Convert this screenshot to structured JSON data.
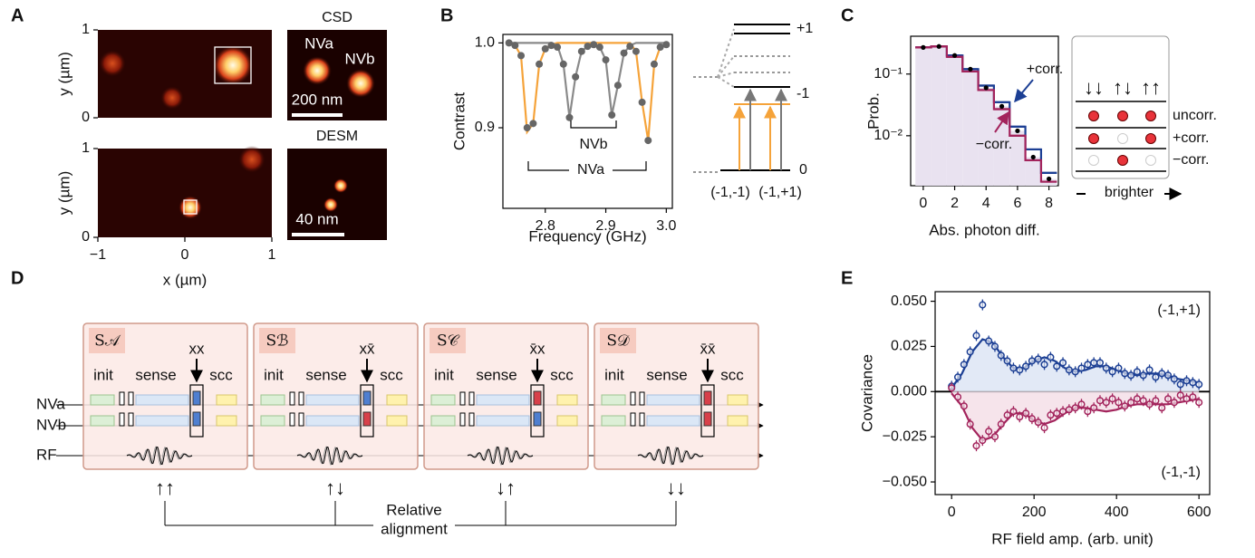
{
  "panel_labels": [
    "A",
    "B",
    "C",
    "D",
    "E"
  ],
  "chart_data": [
    {
      "type": "image",
      "ylabel": "y (µm)",
      "xlim": [
        -1,
        1
      ],
      "ylim": [
        0,
        1
      ],
      "yticks": [
        0,
        1
      ]
    },
    {
      "type": "image",
      "ylabel": "y (µm)",
      "xlabel": "x (µm)",
      "xlim": [
        -1,
        1
      ],
      "ylim": [
        0,
        1
      ],
      "xticks": [
        {
          "value": -1,
          "label": "−1"
        },
        0,
        1
      ],
      "yticks": [
        0,
        1
      ]
    },
    {
      "type": "image",
      "title": "CSD",
      "annotations": [
        "NVa",
        "NVb"
      ],
      "scale_bar": "200 nm"
    },
    {
      "type": "image",
      "title": "DESM",
      "scale_bar": "40 nm"
    },
    {
      "type": "scatter",
      "ylabel": "Contrast",
      "xlabel": "Frequency (GHz)",
      "xlim": [
        2.73,
        3.01
      ],
      "ylim": [
        0.805,
        1.01
      ],
      "xticks": [
        2.8,
        2.9,
        {
          "value": 3.0,
          "label": "3.0"
        }
      ],
      "yticks": [
        0.9,
        {
          "value": 1.0,
          "label": "1.0"
        }
      ],
      "x": [
        2.74,
        2.75,
        2.76,
        2.77,
        2.78,
        2.79,
        2.8,
        2.81,
        2.82,
        2.83,
        2.84,
        2.85,
        2.86,
        2.87,
        2.88,
        2.89,
        2.9,
        2.91,
        2.92,
        2.93,
        2.94,
        2.95,
        2.96,
        2.97,
        2.98,
        2.99,
        3.0
      ],
      "series": [
        {
          "mode": "line",
          "color": "#f5a33a",
          "values": [
            1.0,
            0.997,
            0.985,
            0.895,
            0.905,
            0.975,
            0.993,
            0.998,
            1.0,
            1.0,
            1.0,
            1.0,
            1.0,
            1.0,
            1.0,
            1.0,
            1.0,
            1.0,
            1.0,
            1.0,
            1.0,
            0.99,
            0.93,
            0.885,
            0.975,
            0.995,
            0.998
          ]
        },
        {
          "mode": "line",
          "color": "#8a8a8a",
          "values": [
            1.0,
            1.0,
            1.0,
            1.0,
            1.0,
            1.0,
            1.0,
            1.0,
            0.997,
            0.975,
            0.912,
            0.96,
            0.99,
            0.996,
            0.998,
            0.995,
            0.98,
            0.915,
            0.95,
            0.988,
            0.997,
            1.0,
            1.0,
            1.0,
            1.0,
            1.0,
            1.0
          ]
        },
        {
          "mode": "markers",
          "color": "#666666",
          "values": [
            1.0,
            0.997,
            0.985,
            0.9,
            0.905,
            0.975,
            0.993,
            0.997,
            0.995,
            0.975,
            0.912,
            0.96,
            0.99,
            0.996,
            0.998,
            0.995,
            0.98,
            0.915,
            0.95,
            0.988,
            0.996,
            0.99,
            0.93,
            0.885,
            0.975,
            0.995,
            0.998
          ]
        }
      ],
      "annotations": [
        "NVb",
        "NVa"
      ]
    },
    {
      "type": "step",
      "ylabel": "Prob.",
      "xlabel": "Abs. photon diff.",
      "log_y": true,
      "xlim": [
        -0.8,
        8.6
      ],
      "ylim": [
        0.00155,
        0.41
      ],
      "xticks": [
        0,
        2,
        4,
        6,
        8
      ],
      "yticks": [
        {
          "value": 0.1,
          "label": "10⁻¹"
        },
        {
          "value": 0.01,
          "label": "10⁻²"
        }
      ],
      "x": [
        0,
        1,
        2,
        3,
        4,
        5,
        6,
        7,
        8
      ],
      "series": [
        {
          "name": "uncorr.",
          "mode": "bars-dots",
          "color": "#000000",
          "fill": "#e9e2f0",
          "values": [
            0.27,
            0.28,
            0.2,
            0.12,
            0.06,
            0.03,
            0.012,
            0.0045,
            0.002
          ]
        },
        {
          "name": "+corr.",
          "mode": "step",
          "color": "#1c3f94",
          "values": [
            0.27,
            0.28,
            0.2,
            0.12,
            0.065,
            0.035,
            0.014,
            0.006,
            0.0025
          ]
        },
        {
          "name": "−corr.",
          "mode": "step",
          "color": "#a3245c",
          "values": [
            0.27,
            0.28,
            0.19,
            0.11,
            0.055,
            0.027,
            0.01,
            0.004,
            0.0018
          ]
        }
      ]
    },
    {
      "type": "scatter",
      "ylabel": "Covariance",
      "xlabel": "RF field amp. (arb. unit)",
      "xlim": [
        -40,
        626
      ],
      "ylim": [
        -0.057,
        0.0553
      ],
      "xticks": [
        0,
        200,
        400,
        600
      ],
      "yticks": [
        {
          "value": -0.05,
          "label": "−0.050"
        },
        {
          "value": -0.025,
          "label": "−0.025"
        },
        {
          "value": 0,
          "label": "0.000"
        },
        {
          "value": 0.025,
          "label": "0.025"
        },
        {
          "value": 0.05,
          "label": "0.050"
        }
      ],
      "zero_line": true,
      "series": [
        {
          "mode": "line",
          "color": "#1c3f94",
          "fill": "#dde5f5",
          "x": [
            0,
            25,
            50,
            75,
            100,
            125,
            150,
            175,
            200,
            225,
            250,
            275,
            300,
            325,
            350,
            375,
            400,
            425,
            450,
            475,
            500,
            525,
            550,
            575,
            600
          ],
          "values": [
            0.002,
            0.01,
            0.022,
            0.029,
            0.027,
            0.019,
            0.013,
            0.013,
            0.017,
            0.019,
            0.017,
            0.013,
            0.011,
            0.012,
            0.014,
            0.014,
            0.012,
            0.01,
            0.009,
            0.01,
            0.01,
            0.009,
            0.007,
            0.006,
            0.005
          ]
        },
        {
          "mode": "line",
          "color": "#a3245c",
          "fill": "#f4dfe8",
          "x": [
            0,
            25,
            50,
            75,
            100,
            125,
            150,
            175,
            200,
            225,
            250,
            275,
            300,
            325,
            350,
            375,
            400,
            425,
            450,
            475,
            500,
            525,
            550,
            575,
            600
          ],
          "values": [
            -0.001,
            -0.008,
            -0.02,
            -0.027,
            -0.025,
            -0.018,
            -0.012,
            -0.012,
            -0.016,
            -0.018,
            -0.016,
            -0.012,
            -0.009,
            -0.009,
            -0.01,
            -0.011,
            -0.01,
            -0.008,
            -0.007,
            -0.007,
            -0.007,
            -0.007,
            -0.006,
            -0.005,
            -0.004
          ]
        },
        {
          "mode": "errorbar",
          "color": "#1c3f94",
          "error": 0.003,
          "x": [
            0,
            15,
            30,
            45,
            60,
            75,
            90,
            105,
            120,
            135,
            150,
            165,
            180,
            195,
            210,
            225,
            240,
            255,
            270,
            285,
            300,
            315,
            330,
            345,
            360,
            375,
            390,
            405,
            420,
            435,
            450,
            465,
            480,
            495,
            510,
            525,
            540,
            555,
            570,
            585,
            600
          ],
          "values": [
            0.003,
            0.008,
            0.015,
            0.022,
            0.031,
            0.048,
            0.028,
            0.025,
            0.02,
            0.017,
            0.013,
            0.012,
            0.014,
            0.017,
            0.018,
            0.015,
            0.019,
            0.014,
            0.016,
            0.012,
            0.011,
            0.013,
            0.015,
            0.016,
            0.016,
            0.013,
            0.011,
            0.013,
            0.01,
            0.009,
            0.011,
            0.009,
            0.012,
            0.008,
            0.01,
            0.009,
            0.007,
            0.004,
            0.006,
            0.005,
            0.004
          ]
        },
        {
          "mode": "errorbar",
          "color": "#a3245c",
          "error": 0.003,
          "x": [
            0,
            15,
            30,
            45,
            60,
            75,
            90,
            105,
            120,
            135,
            150,
            165,
            180,
            195,
            210,
            225,
            240,
            255,
            270,
            285,
            300,
            315,
            330,
            345,
            360,
            375,
            390,
            405,
            420,
            435,
            450,
            465,
            480,
            495,
            510,
            525,
            540,
            555,
            570,
            585,
            600
          ],
          "values": [
            0.002,
            -0.003,
            -0.008,
            -0.018,
            -0.03,
            -0.027,
            -0.022,
            -0.025,
            -0.018,
            -0.013,
            -0.011,
            -0.014,
            -0.012,
            -0.015,
            -0.017,
            -0.02,
            -0.013,
            -0.012,
            -0.011,
            -0.01,
            -0.009,
            -0.007,
            -0.011,
            -0.009,
            -0.005,
            -0.006,
            -0.004,
            -0.006,
            -0.008,
            -0.006,
            -0.004,
            -0.005,
            -0.007,
            -0.005,
            -0.009,
            -0.004,
            -0.006,
            -0.002,
            -0.004,
            -0.003,
            -0.006
          ]
        }
      ],
      "annotations": [
        "(-1,+1)",
        "(-1,-1)"
      ]
    }
  ],
  "energy_levels": {
    "levels": [
      "+1",
      "-1",
      "0"
    ],
    "transitions": [
      "(-1,-1)",
      "(-1,+1)"
    ]
  },
  "brightness_key": {
    "spins": [
      "↓↓",
      "↑↓",
      "↑↑"
    ],
    "note": "brighter"
  },
  "sequence": {
    "steps": [
      "init",
      "sense",
      "scc"
    ],
    "channels": [
      "NVa",
      "NVb",
      "RF"
    ],
    "blocks": [
      {
        "label": "S𝒜",
        "pulse": "xx",
        "alignment": "↑↑",
        "readout": [
          "#4f7fd0",
          "#4f7fd0"
        ]
      },
      {
        "label": "Sℬ",
        "pulse": "xx̄",
        "alignment": "↑↓",
        "readout": [
          "#4f7fd0",
          "#d8404a"
        ]
      },
      {
        "label": "S𝒞",
        "pulse": "x̄x",
        "alignment": "↓↑",
        "readout": [
          "#d8404a",
          "#4f7fd0"
        ]
      },
      {
        "label": "S𝒟",
        "pulse": "x̄x̄",
        "alignment": "↓↓",
        "readout": [
          "#d8404a",
          "#d8404a"
        ]
      }
    ],
    "footer": [
      "Relative",
      "alignment"
    ]
  }
}
